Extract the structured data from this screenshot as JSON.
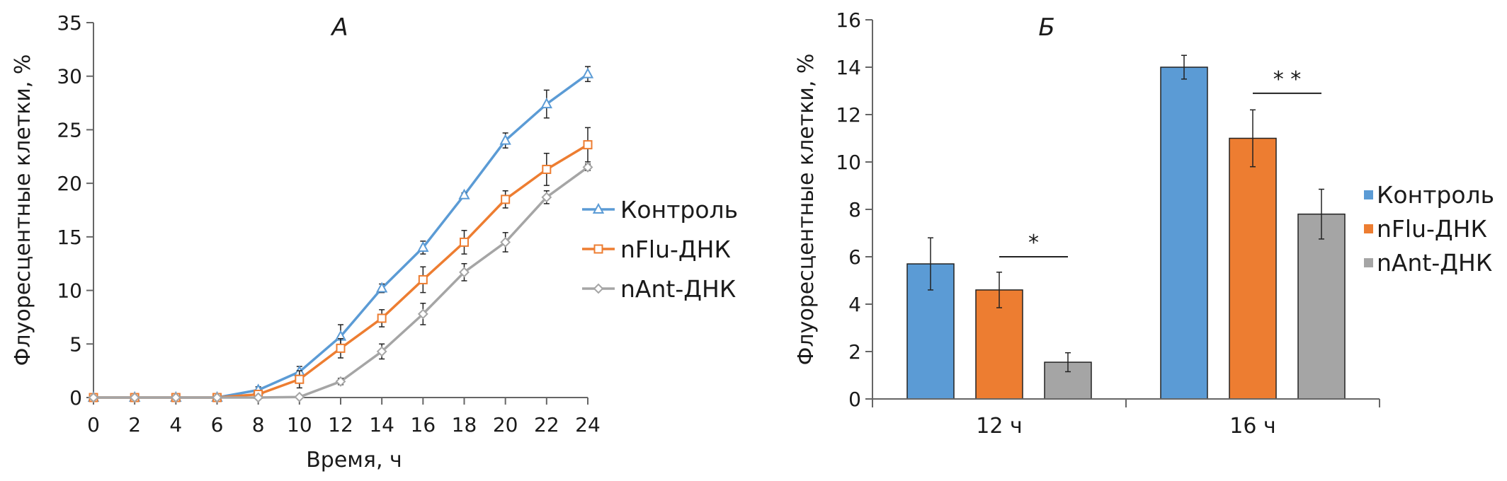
{
  "chart_data": [
    {
      "type": "line",
      "title": "А",
      "xlabel": "Время, ч",
      "ylabel": "Флуоресцентные клетки, %",
      "xlim": [
        0,
        24
      ],
      "ylim": [
        0,
        35
      ],
      "x_ticks": [
        0,
        2,
        4,
        6,
        8,
        10,
        12,
        14,
        16,
        18,
        20,
        22,
        24
      ],
      "y_ticks": [
        0,
        5,
        10,
        15,
        20,
        25,
        30,
        35
      ],
      "x": [
        0,
        2,
        4,
        6,
        8,
        10,
        12,
        14,
        16,
        18,
        20,
        22,
        24
      ],
      "legend_position": "right",
      "series": [
        {
          "name": "Контроль",
          "color": "#5b9bd5",
          "marker": "triangle",
          "values": [
            0,
            0,
            0,
            0,
            0.7,
            2.4,
            5.7,
            10.2,
            14.0,
            18.9,
            24.0,
            27.4,
            30.2
          ],
          "errors": [
            0,
            0,
            0,
            0,
            0.3,
            0.5,
            1.1,
            0.4,
            0.6,
            0.2,
            0.7,
            1.3,
            0.7
          ]
        },
        {
          "name": "nFlu-ДНК",
          "color": "#ed7d31",
          "marker": "square",
          "values": [
            0,
            0,
            0,
            0,
            0.3,
            1.7,
            4.6,
            7.4,
            11.0,
            14.5,
            18.5,
            21.3,
            23.6
          ],
          "errors": [
            0,
            0,
            0,
            0,
            0.3,
            0.8,
            0.9,
            0.8,
            1.2,
            1.1,
            0.8,
            1.5,
            1.6
          ]
        },
        {
          "name": "nAnt-ДНК",
          "color": "#a5a5a5",
          "marker": "diamond",
          "values": [
            0,
            0,
            0,
            0,
            0,
            0.05,
            1.5,
            4.3,
            7.8,
            11.7,
            14.5,
            18.7,
            21.5
          ],
          "errors": [
            0,
            0,
            0,
            0,
            0,
            0.1,
            0.3,
            0.7,
            1.0,
            0.8,
            0.9,
            0.6,
            0.3
          ]
        }
      ]
    },
    {
      "type": "bar",
      "title": "Б",
      "xlabel": "",
      "ylabel": "Флуоресцентные клетки, %",
      "ylim": [
        0,
        16
      ],
      "y_ticks": [
        0,
        2,
        4,
        6,
        8,
        10,
        12,
        14,
        16
      ],
      "categories": [
        "12 ч",
        "16 ч"
      ],
      "legend_position": "right",
      "series": [
        {
          "name": "Контроль",
          "color": "#5b9bd5",
          "values": [
            5.7,
            14.0
          ],
          "errors": [
            1.1,
            0.5
          ]
        },
        {
          "name": "nFlu-ДНК",
          "color": "#ed7d31",
          "values": [
            4.6,
            11.0
          ],
          "errors": [
            0.75,
            1.2
          ]
        },
        {
          "name": "nAnt-ДНК",
          "color": "#a5a5a5",
          "values": [
            1.55,
            7.8
          ],
          "errors": [
            0.4,
            1.05
          ]
        }
      ],
      "annotations": [
        {
          "text": "*",
          "category": "12 ч",
          "between": [
            "nFlu-ДНК",
            "nAnt-ДНК"
          ],
          "y": 6.0
        },
        {
          "text": "* *",
          "category": "16 ч",
          "between": [
            "nFlu-ДНК",
            "nAnt-ДНК"
          ],
          "y": 12.9
        }
      ]
    }
  ]
}
